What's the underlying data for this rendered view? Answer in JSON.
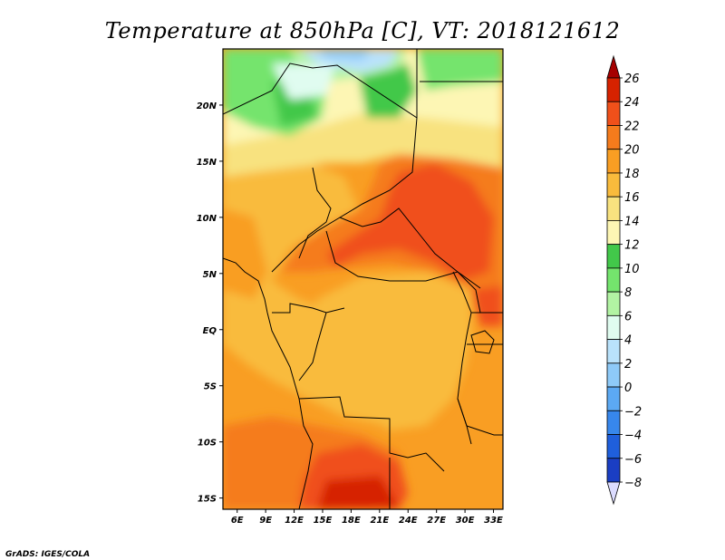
{
  "title": "Temperature at 850hPa [C], VT: 2018121612",
  "credit": "GrADS: IGES/COLA",
  "map": {
    "variable": "Temperature at 850hPa",
    "units": "C",
    "valid_time": "2018121612",
    "lon_range": [
      4.5,
      34
    ],
    "lat_range": [
      -16,
      25
    ],
    "x_ticks": [
      {
        "value": 6,
        "label": "6E"
      },
      {
        "value": 9,
        "label": "9E"
      },
      {
        "value": 12,
        "label": "12E"
      },
      {
        "value": 15,
        "label": "15E"
      },
      {
        "value": 18,
        "label": "18E"
      },
      {
        "value": 21,
        "label": "21E"
      },
      {
        "value": 24,
        "label": "24E"
      },
      {
        "value": 27,
        "label": "27E"
      },
      {
        "value": 30,
        "label": "30E"
      },
      {
        "value": 33,
        "label": "33E"
      }
    ],
    "y_ticks": [
      {
        "value": 20,
        "label": "20N"
      },
      {
        "value": 15,
        "label": "15N"
      },
      {
        "value": 10,
        "label": "10N"
      },
      {
        "value": 5,
        "label": "5N"
      },
      {
        "value": 0,
        "label": "EQ"
      },
      {
        "value": -5,
        "label": "5S"
      },
      {
        "value": -10,
        "label": "10S"
      },
      {
        "value": -15,
        "label": "15S"
      }
    ]
  },
  "colorbar": {
    "levels": [
      "26",
      "24",
      "22",
      "20",
      "18",
      "16",
      "14",
      "12",
      "10",
      "8",
      "6",
      "4",
      "2",
      "0",
      "−2",
      "−4",
      "−6",
      "−8"
    ],
    "colors": [
      "#a50000",
      "#d62200",
      "#f0501a",
      "#f57b1c",
      "#f99e23",
      "#f9bb3c",
      "#f8e27f",
      "#fdf6b4",
      "#42c84a",
      "#74e46d",
      "#b2f3a3",
      "#e0fcf0",
      "#b9e2fb",
      "#8ecaf8",
      "#5ca9f3",
      "#3787ec",
      "#1f5fdc",
      "#1a3ec3",
      "#0c1f82"
    ]
  },
  "colors": {
    "background": "#ffffff",
    "frame": "#000000",
    "borders": "#000000"
  }
}
